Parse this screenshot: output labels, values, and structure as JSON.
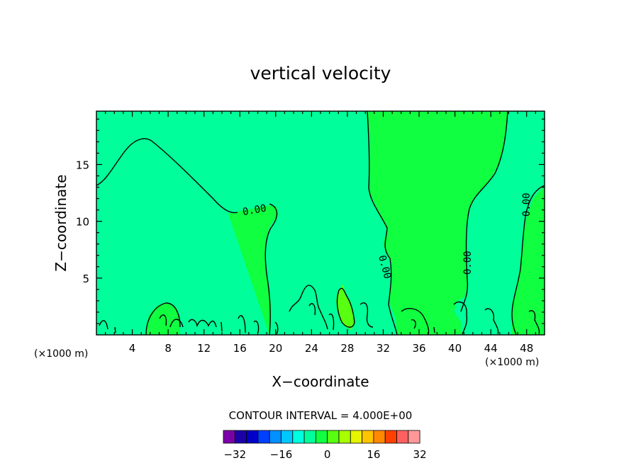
{
  "chart_data": {
    "type": "contour",
    "title": "vertical velocity",
    "xlabel": "X−coordinate",
    "ylabel": "Z−coordinate",
    "x_unit": "(×1000 m)",
    "y_unit": "(×1000 m)",
    "xlim": [
      0,
      50
    ],
    "ylim": [
      0,
      19.7
    ],
    "x_ticks": [
      4,
      8,
      12,
      16,
      20,
      24,
      28,
      32,
      36,
      40,
      44,
      48
    ],
    "y_ticks": [
      5,
      10,
      15
    ],
    "contour_interval_label": "CONTOUR INTERVAL = 4.000E+00",
    "contour_value_labels": [
      "0.00",
      "0.00",
      "0.00",
      "0.00"
    ],
    "colorbar": {
      "tick_labels": [
        "−32",
        "−16",
        "0",
        "16",
        "32"
      ],
      "colors": [
        "#7b00a8",
        "#1c00a8",
        "#0000c8",
        "#0040ff",
        "#0090ff",
        "#00c8ff",
        "#00ffe0",
        "#00ff9a",
        "#10ff40",
        "#58ff10",
        "#a8ff00",
        "#e6f400",
        "#ffc400",
        "#ff8800",
        "#ff4000",
        "#ff6060",
        "#ff9898"
      ]
    },
    "fill_colors": {
      "background_band": "#00ff9a",
      "central_band": "#10ff40",
      "peak_band": "#58ff10"
    }
  }
}
